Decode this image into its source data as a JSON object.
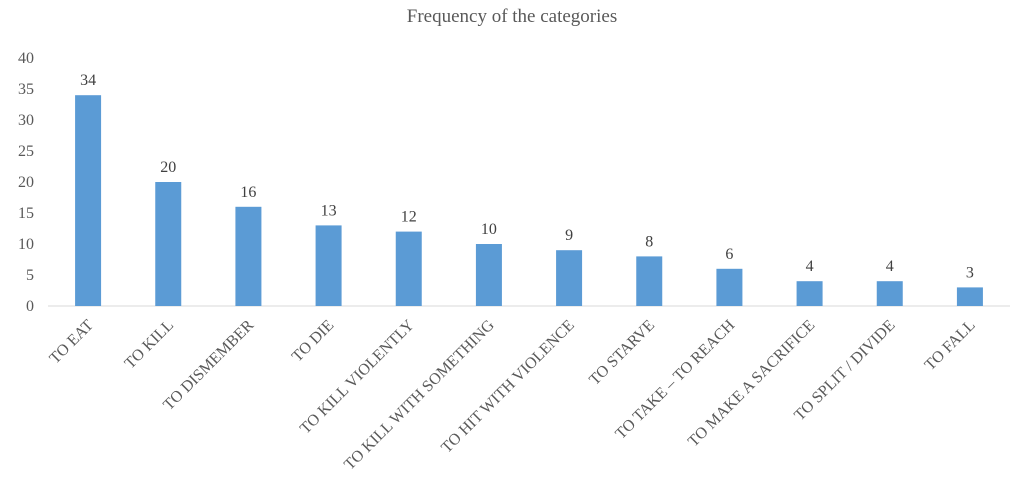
{
  "chart_data": {
    "type": "bar",
    "title": "Frequency of the categories",
    "categories": [
      "TO EAT",
      "TO KILL",
      "TO DISMEMBER",
      "TO DIE",
      "TO KILL VIOLENTLY",
      "TO KILL WITH SOMETHING",
      "TO HIT WITH VIOLENCE",
      "TO STARVE",
      "TO TAKE – TO REACH",
      "TO MAKE A SACRIFICE",
      "TO SPLIT / DIVIDE",
      "TO FALL"
    ],
    "values": [
      34,
      20,
      16,
      13,
      12,
      10,
      9,
      8,
      6,
      4,
      4,
      3
    ],
    "ylim": [
      0,
      40
    ],
    "yticks": [
      0,
      5,
      10,
      15,
      20,
      25,
      30,
      35,
      40
    ],
    "xlabel": "",
    "ylabel": "",
    "grid": false,
    "legend": "none",
    "data_labels": true,
    "bar_color": "#5b9bd5",
    "axis_color": "#d9d9d9",
    "text_color": "#595959"
  }
}
